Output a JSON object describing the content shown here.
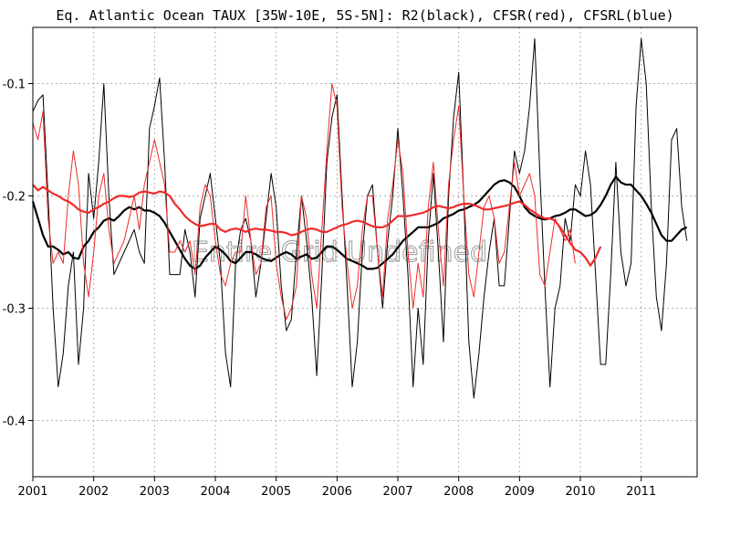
{
  "chart_data": {
    "type": "line",
    "title": "Eq. Atlantic Ocean TAUX [35W-10E, 5S-5N]: R2(black), CFSR(red), CFSRL(blue)",
    "overlay_text": "Entire Grid Undefined",
    "xlim": [
      2001.0,
      2011.92
    ],
    "ylim": [
      -0.45,
      -0.05
    ],
    "x_ticks": [
      2001,
      2002,
      2003,
      2004,
      2005,
      2006,
      2007,
      2008,
      2009,
      2010,
      2011
    ],
    "x_tick_labels": [
      "2001",
      "2002",
      "2003",
      "2004",
      "2005",
      "2006",
      "2007",
      "2008",
      "2009",
      "2010",
      "2011"
    ],
    "y_ticks": [
      -0.4,
      -0.3,
      -0.2,
      -0.1
    ],
    "y_tick_labels": [
      "-0.4",
      "-0.3",
      "-0.2",
      "-0.1"
    ],
    "grid": true,
    "colors": {
      "black": "#000000",
      "red": "#ee2b2b",
      "grid": "#b0b0b0"
    },
    "series": [
      {
        "color": "#000000",
        "style": "monthly",
        "x_start": 2001.0,
        "x_step": 0.083333,
        "values": [
          -0.125,
          -0.115,
          -0.11,
          -0.2,
          -0.3,
          -0.37,
          -0.34,
          -0.28,
          -0.25,
          -0.35,
          -0.3,
          -0.18,
          -0.22,
          -0.17,
          -0.1,
          -0.2,
          -0.27,
          -0.26,
          -0.25,
          -0.24,
          -0.23,
          -0.25,
          -0.26,
          -0.14,
          -0.12,
          -0.095,
          -0.17,
          -0.27,
          -0.27,
          -0.27,
          -0.23,
          -0.25,
          -0.29,
          -0.22,
          -0.2,
          -0.18,
          -0.22,
          -0.26,
          -0.34,
          -0.37,
          -0.26,
          -0.23,
          -0.22,
          -0.24,
          -0.29,
          -0.26,
          -0.22,
          -0.18,
          -0.21,
          -0.28,
          -0.32,
          -0.31,
          -0.25,
          -0.2,
          -0.24,
          -0.29,
          -0.36,
          -0.27,
          -0.17,
          -0.13,
          -0.11,
          -0.2,
          -0.28,
          -0.37,
          -0.33,
          -0.25,
          -0.2,
          -0.19,
          -0.25,
          -0.3,
          -0.24,
          -0.2,
          -0.14,
          -0.2,
          -0.27,
          -0.37,
          -0.3,
          -0.35,
          -0.24,
          -0.18,
          -0.25,
          -0.33,
          -0.2,
          -0.13,
          -0.09,
          -0.2,
          -0.33,
          -0.38,
          -0.34,
          -0.29,
          -0.25,
          -0.22,
          -0.28,
          -0.28,
          -0.22,
          -0.16,
          -0.18,
          -0.16,
          -0.12,
          -0.06,
          -0.18,
          -0.28,
          -0.37,
          -0.3,
          -0.28,
          -0.22,
          -0.24,
          -0.19,
          -0.2,
          -0.16,
          -0.19,
          -0.27,
          -0.35,
          -0.35,
          -0.27,
          -0.17,
          -0.25,
          -0.28,
          -0.26,
          -0.12,
          -0.06,
          -0.1,
          -0.21,
          -0.29,
          -0.32,
          -0.26,
          -0.15,
          -0.14,
          -0.21,
          -0.24
        ]
      },
      {
        "color": "#000000",
        "style": "smoothed",
        "x_start": 2001.0,
        "x_step": 0.083333,
        "values": [
          -0.205,
          -0.22,
          -0.235,
          -0.245,
          -0.245,
          -0.248,
          -0.252,
          -0.25,
          -0.255,
          -0.256,
          -0.245,
          -0.24,
          -0.232,
          -0.228,
          -0.222,
          -0.22,
          -0.222,
          -0.218,
          -0.213,
          -0.21,
          -0.212,
          -0.21,
          -0.213,
          -0.213,
          -0.215,
          -0.218,
          -0.224,
          -0.232,
          -0.24,
          -0.248,
          -0.256,
          -0.262,
          -0.265,
          -0.262,
          -0.255,
          -0.25,
          -0.245,
          -0.248,
          -0.252,
          -0.258,
          -0.26,
          -0.255,
          -0.25,
          -0.25,
          -0.252,
          -0.255,
          -0.257,
          -0.258,
          -0.255,
          -0.252,
          -0.25,
          -0.252,
          -0.256,
          -0.254,
          -0.252,
          -0.256,
          -0.255,
          -0.25,
          -0.245,
          -0.245,
          -0.248,
          -0.252,
          -0.256,
          -0.258,
          -0.26,
          -0.262,
          -0.265,
          -0.265,
          -0.264,
          -0.26,
          -0.256,
          -0.252,
          -0.246,
          -0.24,
          -0.236,
          -0.232,
          -0.228,
          -0.228,
          -0.228,
          -0.226,
          -0.224,
          -0.22,
          -0.218,
          -0.216,
          -0.213,
          -0.212,
          -0.21,
          -0.208,
          -0.205,
          -0.2,
          -0.195,
          -0.19,
          -0.187,
          -0.186,
          -0.188,
          -0.192,
          -0.2,
          -0.21,
          -0.215,
          -0.218,
          -0.22,
          -0.221,
          -0.22,
          -0.218,
          -0.217,
          -0.215,
          -0.212,
          -0.212,
          -0.215,
          -0.218,
          -0.217,
          -0.214,
          -0.208,
          -0.2,
          -0.19,
          -0.183,
          -0.188,
          -0.19,
          -0.19,
          -0.195,
          -0.2,
          -0.207,
          -0.215,
          -0.225,
          -0.235,
          -0.24,
          -0.24,
          -0.235,
          -0.23,
          -0.228
        ]
      },
      {
        "color": "#ee2b2b",
        "style": "monthly",
        "x_start": 2001.0,
        "x_step": 0.083333,
        "values": [
          -0.135,
          -0.15,
          -0.125,
          -0.22,
          -0.26,
          -0.25,
          -0.26,
          -0.2,
          -0.16,
          -0.19,
          -0.26,
          -0.29,
          -0.25,
          -0.2,
          -0.18,
          -0.23,
          -0.26,
          -0.25,
          -0.24,
          -0.22,
          -0.2,
          -0.23,
          -0.19,
          -0.17,
          -0.15,
          -0.17,
          -0.19,
          -0.25,
          -0.25,
          -0.24,
          -0.25,
          -0.24,
          -0.27,
          -0.21,
          -0.19,
          -0.2,
          -0.24,
          -0.27,
          -0.28,
          -0.26,
          -0.25,
          -0.25,
          -0.2,
          -0.24,
          -0.27,
          -0.26,
          -0.21,
          -0.2,
          -0.26,
          -0.29,
          -0.31,
          -0.3,
          -0.28,
          -0.2,
          -0.22,
          -0.27,
          -0.3,
          -0.23,
          -0.16,
          -0.1,
          -0.12,
          -0.21,
          -0.26,
          -0.3,
          -0.28,
          -0.23,
          -0.2,
          -0.2,
          -0.25,
          -0.29,
          -0.22,
          -0.19,
          -0.15,
          -0.18,
          -0.25,
          -0.3,
          -0.26,
          -0.29,
          -0.21,
          -0.17,
          -0.23,
          -0.28,
          -0.19,
          -0.15,
          -0.12,
          -0.2,
          -0.27,
          -0.29,
          -0.25,
          -0.21,
          -0.2,
          -0.22,
          -0.26,
          -0.25,
          -0.21,
          -0.17,
          -0.2,
          -0.19,
          -0.18,
          -0.2,
          -0.27,
          -0.28,
          -0.25,
          -0.22,
          -0.23,
          -0.24,
          -0.23,
          -0.26
        ]
      },
      {
        "color": "#ee2b2b",
        "style": "smoothed",
        "x_start": 2001.0,
        "x_step": 0.083333,
        "values": [
          -0.19,
          -0.195,
          -0.192,
          -0.195,
          -0.198,
          -0.2,
          -0.203,
          -0.205,
          -0.208,
          -0.212,
          -0.214,
          -0.215,
          -0.212,
          -0.21,
          -0.207,
          -0.205,
          -0.202,
          -0.2,
          -0.2,
          -0.201,
          -0.2,
          -0.197,
          -0.196,
          -0.197,
          -0.198,
          -0.196,
          -0.197,
          -0.2,
          -0.207,
          -0.212,
          -0.218,
          -0.222,
          -0.225,
          -0.227,
          -0.226,
          -0.225,
          -0.225,
          -0.23,
          -0.232,
          -0.23,
          -0.229,
          -0.23,
          -0.232,
          -0.23,
          -0.229,
          -0.23,
          -0.23,
          -0.231,
          -0.232,
          -0.232,
          -0.233,
          -0.235,
          -0.234,
          -0.232,
          -0.23,
          -0.229,
          -0.23,
          -0.232,
          -0.232,
          -0.23,
          -0.228,
          -0.226,
          -0.225,
          -0.223,
          -0.222,
          -0.223,
          -0.225,
          -0.227,
          -0.228,
          -0.228,
          -0.226,
          -0.222,
          -0.218,
          -0.218,
          -0.218,
          -0.217,
          -0.216,
          -0.215,
          -0.213,
          -0.21,
          -0.209,
          -0.21,
          -0.211,
          -0.21,
          -0.208,
          -0.207,
          -0.207,
          -0.208,
          -0.21,
          -0.212,
          -0.212,
          -0.211,
          -0.21,
          -0.209,
          -0.208,
          -0.206,
          -0.205,
          -0.208,
          -0.212,
          -0.215,
          -0.218,
          -0.22,
          -0.22,
          -0.222,
          -0.228,
          -0.235,
          -0.242,
          -0.248,
          -0.25,
          -0.255,
          -0.262,
          -0.255,
          -0.245
        ]
      }
    ]
  }
}
